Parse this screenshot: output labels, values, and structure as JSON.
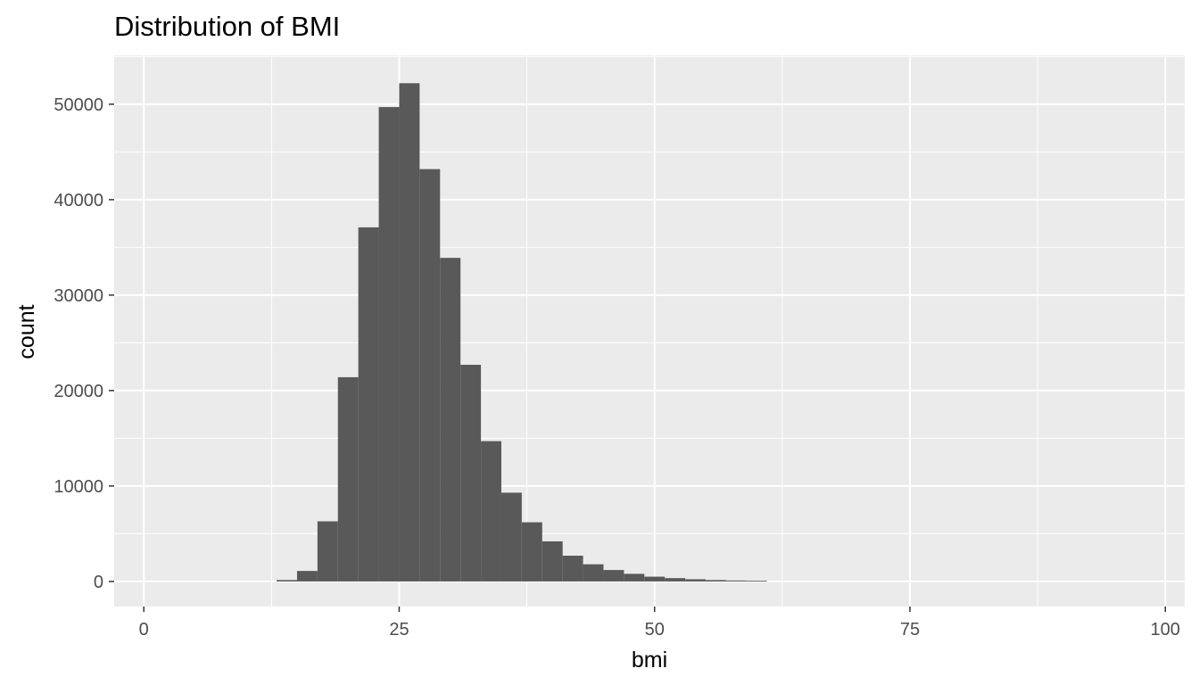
{
  "chart_data": {
    "type": "bar",
    "title": "Distribution of BMI",
    "xlabel": "bmi",
    "ylabel": "count",
    "xlim": [
      -2.9,
      101.9
    ],
    "ylim": [
      -2625,
      55125
    ],
    "x_ticks": [
      0,
      25,
      50,
      75,
      100
    ],
    "x_tick_labels": [
      "0",
      "25",
      "50",
      "75",
      "100"
    ],
    "y_ticks": [
      0,
      10000,
      20000,
      30000,
      40000,
      50000
    ],
    "y_tick_labels": [
      "0",
      "10000",
      "20000",
      "30000",
      "40000",
      "50000"
    ],
    "bin_width": 2,
    "bins": [
      {
        "x0": 13,
        "x1": 15,
        "count": 150
      },
      {
        "x0": 15,
        "x1": 17,
        "count": 1100
      },
      {
        "x0": 17,
        "x1": 19,
        "count": 6300
      },
      {
        "x0": 19,
        "x1": 21,
        "count": 21400
      },
      {
        "x0": 21,
        "x1": 23,
        "count": 37100
      },
      {
        "x0": 23,
        "x1": 25,
        "count": 49700
      },
      {
        "x0": 25,
        "x1": 27,
        "count": 52200
      },
      {
        "x0": 27,
        "x1": 29,
        "count": 43200
      },
      {
        "x0": 29,
        "x1": 31,
        "count": 33900
      },
      {
        "x0": 31,
        "x1": 33,
        "count": 22700
      },
      {
        "x0": 33,
        "x1": 35,
        "count": 14700
      },
      {
        "x0": 35,
        "x1": 37,
        "count": 9300
      },
      {
        "x0": 37,
        "x1": 39,
        "count": 6200
      },
      {
        "x0": 39,
        "x1": 41,
        "count": 4200
      },
      {
        "x0": 41,
        "x1": 43,
        "count": 2700
      },
      {
        "x0": 43,
        "x1": 45,
        "count": 1800
      },
      {
        "x0": 45,
        "x1": 47,
        "count": 1200
      },
      {
        "x0": 47,
        "x1": 49,
        "count": 800
      },
      {
        "x0": 49,
        "x1": 51,
        "count": 500
      },
      {
        "x0": 51,
        "x1": 53,
        "count": 350
      },
      {
        "x0": 53,
        "x1": 55,
        "count": 230
      },
      {
        "x0": 55,
        "x1": 57,
        "count": 150
      },
      {
        "x0": 57,
        "x1": 59,
        "count": 100
      },
      {
        "x0": 59,
        "x1": 61,
        "count": 80
      }
    ],
    "grid": true,
    "colors": {
      "panel_background": "#ebebeb",
      "grid_major": "#ffffff",
      "bar_fill": "#595959",
      "tick_text": "#4d4d4d",
      "tick_mark": "#333333"
    }
  }
}
